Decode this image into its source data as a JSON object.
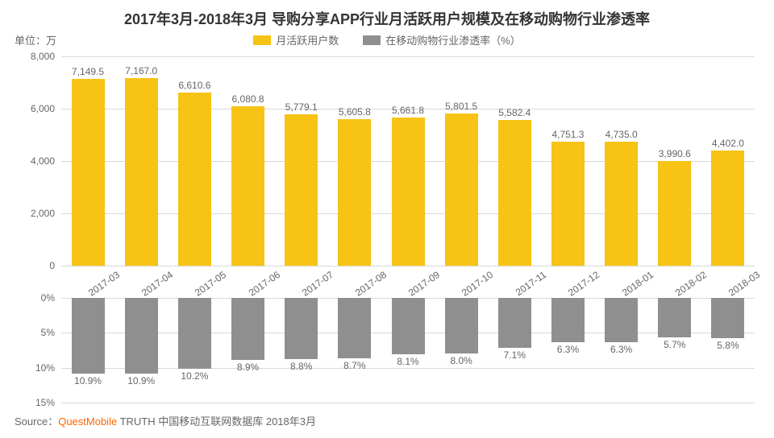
{
  "title": "2017年3月-2018年3月 导购分享APP行业月活跃用户规模及在移动购物行业渗透率",
  "title_fontsize": 18,
  "unit_label": "单位：万",
  "unit_fontsize": 13,
  "legend": {
    "series1": {
      "label": "月活跃用户数",
      "color": "#f7c315"
    },
    "series2": {
      "label": "在移动购物行业渗透率（%）",
      "color": "#8f8f8f"
    },
    "fontsize": 13
  },
  "categories": [
    "2017-03",
    "2017-04",
    "2017-05",
    "2017-06",
    "2017-07",
    "2017-08",
    "2017-09",
    "2017-10",
    "2017-11",
    "2017-12",
    "2018-01",
    "2018-02",
    "2018-03"
  ],
  "top_chart": {
    "type": "bar",
    "values": [
      7149.5,
      7167.0,
      6610.6,
      6080.8,
      5779.1,
      5605.8,
      5661.8,
      5801.5,
      5582.4,
      4751.3,
      4735.0,
      3990.6,
      4402.0
    ],
    "value_labels": [
      "7,149.5",
      "7,167.0",
      "6,610.6",
      "6,080.8",
      "5,779.1",
      "5,605.8",
      "5,661.8",
      "5,801.5",
      "5,582.4",
      "4,751.3",
      "4,735.0",
      "3,990.6",
      "4,402.0"
    ],
    "color": "#f7c315",
    "ylim": [
      0,
      8000
    ],
    "yticks": [
      0,
      2000,
      4000,
      6000,
      8000
    ],
    "ytick_labels": [
      "0",
      "2,000",
      "4,000",
      "6,000",
      "8,000"
    ],
    "bar_width_ratio": 0.62,
    "label_fontsize": 12,
    "tick_fontsize": 12,
    "grid_color": "#d9d9d9",
    "background_color": "#ffffff"
  },
  "bottom_chart": {
    "type": "bar",
    "values": [
      10.9,
      10.9,
      10.2,
      8.9,
      8.8,
      8.7,
      8.1,
      8.0,
      7.1,
      6.3,
      6.3,
      5.7,
      5.8
    ],
    "value_labels": [
      "10.9%",
      "10.9%",
      "10.2%",
      "8.9%",
      "8.8%",
      "8.7%",
      "8.1%",
      "8.0%",
      "7.1%",
      "6.3%",
      "6.3%",
      "5.7%",
      "5.8%"
    ],
    "color": "#8f8f8f",
    "ylim": [
      0,
      15
    ],
    "yticks": [
      0,
      5,
      10,
      15
    ],
    "ytick_labels": [
      "0%",
      "5%",
      "10%",
      "15%"
    ],
    "bar_width_ratio": 0.62,
    "label_fontsize": 12,
    "tick_fontsize": 12,
    "grid_color": "#d9d9d9",
    "background_color": "#ffffff"
  },
  "x_axis": {
    "fontsize": 12,
    "rotation": -35
  },
  "source": {
    "prefix": "Source：",
    "brand": "QuestMobile",
    "rest": " TRUTH 中国移动互联网数据库 2018年3月",
    "fontsize": 13,
    "brand_color": "#ff6600",
    "text_color": "#666666"
  }
}
